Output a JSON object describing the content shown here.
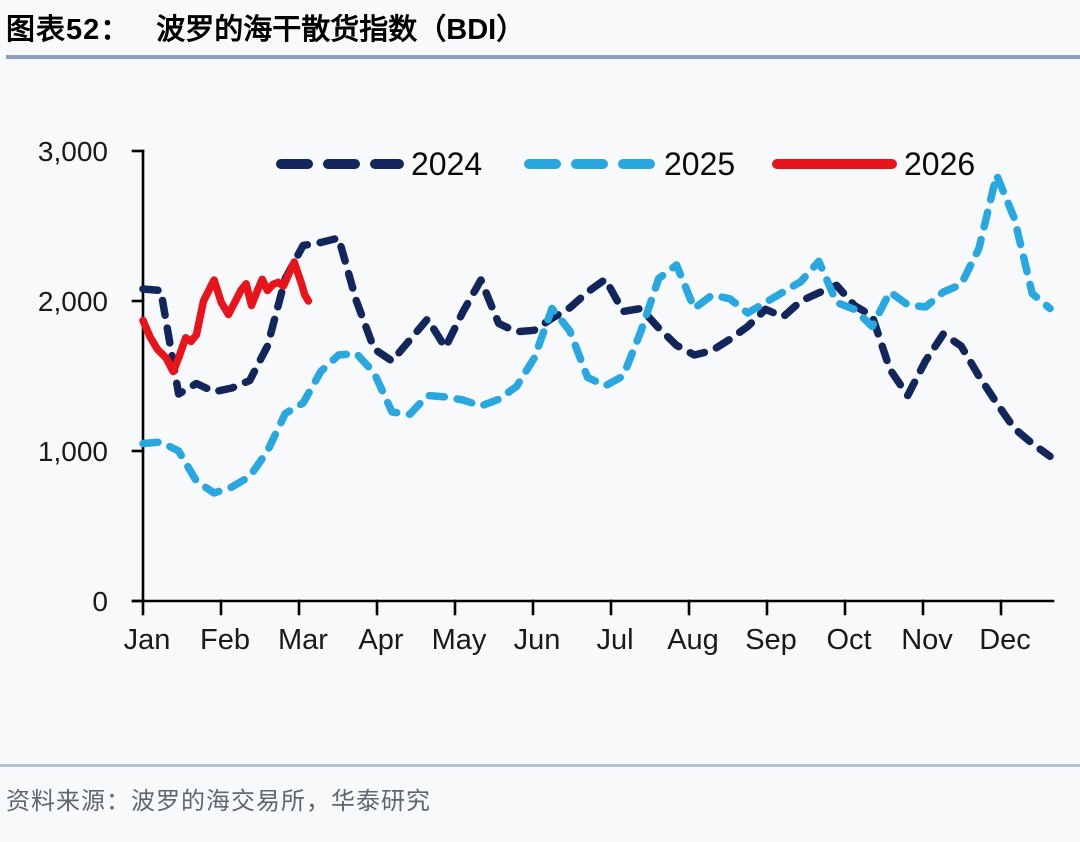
{
  "header": {
    "label": "图表52：",
    "title": "波罗的海干散货指数（BDI）"
  },
  "footer": {
    "source": "资料来源：波罗的海交易所，华泰研究"
  },
  "colors": {
    "series_2024": "#13265b",
    "series_2025": "#29a7e0",
    "series_2026": "#e8131b",
    "axis": "#000000",
    "tick_label": "#1a1a1a",
    "title_rule": "#8ca0b9",
    "footer_rule": "#b2c0cf",
    "background": "#f8f9fa"
  },
  "chart_data": {
    "type": "line",
    "title": "波罗的海干散货指数（BDI）",
    "xlabel": "",
    "ylabel": "",
    "x_axis": {
      "tick_labels": [
        "Jan",
        "Feb",
        "Mar",
        "Apr",
        "May",
        "Jun",
        "Jul",
        "Aug",
        "Sep",
        "Oct",
        "Nov",
        "Dec"
      ],
      "unit": "month-of-year, weekly data points"
    },
    "y_axis": {
      "tick_labels": [
        "0",
        "1,000",
        "2,000",
        "3,000"
      ],
      "tick_values": [
        0,
        1000,
        2000,
        3000
      ],
      "min": 0,
      "max": 3000
    },
    "grid": false,
    "legend_position": "top-center-inside",
    "series": [
      {
        "name": "2024",
        "color": "#13265b",
        "style": "dashed",
        "values": [
          2080,
          2070,
          1380,
          1450,
          1395,
          1420,
          1470,
          1700,
          2150,
          2370,
          2390,
          2420,
          2000,
          1680,
          1600,
          1740,
          1880,
          1690,
          1930,
          2140,
          1850,
          1795,
          1805,
          1885,
          1955,
          2060,
          2145,
          1930,
          1950,
          1820,
          1705,
          1640,
          1670,
          1745,
          1830,
          1945,
          1895,
          2000,
          2055,
          2105,
          1970,
          1900,
          1545,
          1370,
          1600,
          1780,
          1700,
          1500,
          1320,
          1150,
          1050,
          965
        ]
      },
      {
        "name": "2025",
        "color": "#29a7e0",
        "style": "dashed",
        "values": [
          1050,
          1060,
          1000,
          800,
          720,
          760,
          830,
          1000,
          1250,
          1320,
          1530,
          1640,
          1650,
          1520,
          1260,
          1245,
          1370,
          1360,
          1340,
          1300,
          1345,
          1430,
          1620,
          1950,
          1800,
          1490,
          1435,
          1500,
          1800,
          2150,
          2240,
          1950,
          2040,
          2015,
          1920,
          1990,
          2060,
          2130,
          2265,
          1990,
          1945,
          1830,
          2060,
          1975,
          1960,
          2060,
          2110,
          2350,
          2840,
          2550,
          2050,
          1950
        ]
      },
      {
        "name": "2026",
        "color": "#e8131b",
        "style": "solid",
        "x_weeks": [
          1,
          1.4,
          1.8,
          2.3,
          2.7,
          3,
          3.4,
          3.7,
          4,
          4.4,
          4.7,
          5,
          5.4,
          5.8,
          6.2,
          6.5,
          6.8,
          7.1,
          7.4,
          7.7,
          8,
          8.3,
          8.6,
          8.9,
          9.2,
          9.5,
          9.7,
          9.9,
          10.1,
          10.3
        ],
        "values": [
          1870,
          1760,
          1680,
          1620,
          1530,
          1620,
          1755,
          1730,
          1775,
          2000,
          2070,
          2140,
          1990,
          1910,
          2000,
          2070,
          2115,
          1970,
          2060,
          2145,
          2070,
          2110,
          2125,
          2100,
          2180,
          2260,
          2190,
          2120,
          2040,
          2000
        ]
      }
    ]
  }
}
